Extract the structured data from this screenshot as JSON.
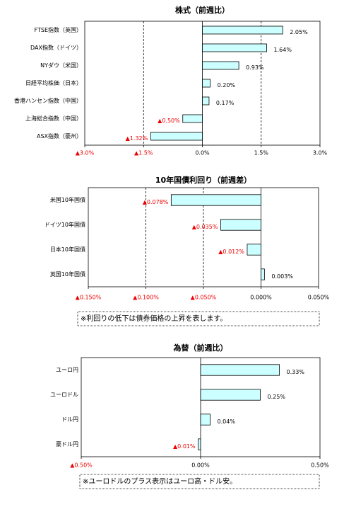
{
  "chart_data": [
    {
      "type": "hbar",
      "title": "株式（前週比）",
      "categories": [
        "FTSE指数（英国）",
        "DAX指数（ドイツ）",
        "NYダウ（米国）",
        "日経平均株価（日本）",
        "香港ハンセン指数（中国）",
        "上海総合指数（中国）",
        "ASX指数（豪州）"
      ],
      "values": [
        2.05,
        1.64,
        0.93,
        0.2,
        0.17,
        -0.5,
        -1.32
      ],
      "value_labels": [
        "2.05%",
        "1.64%",
        "0.93%",
        "0.20%",
        "0.17%",
        "▲0.50%",
        "▲1.32%"
      ],
      "color": "#ccffff",
      "grid": true,
      "xlim": [
        -3.0,
        3.0
      ],
      "xticks": [
        {
          "value": -3.0,
          "label": "▲3.0%"
        },
        {
          "value": -1.5,
          "label": "▲1.5%"
        },
        {
          "value": 0,
          "label": "0.0%"
        },
        {
          "value": 1.5,
          "label": "1.5%"
        },
        {
          "value": 3.0,
          "label": "3.0%"
        }
      ]
    },
    {
      "type": "hbar",
      "title": "10年国債利回り（前週差）",
      "categories": [
        "米国10年国債",
        "ドイツ10年国債",
        "日本10年国債",
        "英国10年国債"
      ],
      "values": [
        -0.078,
        -0.035,
        -0.012,
        0.003
      ],
      "value_labels": [
        "▲0.078%",
        "▲0.035%",
        "▲0.012%",
        "0.003%"
      ],
      "color": "#ccffff",
      "grid": true,
      "xlim": [
        -0.15,
        0.05
      ],
      "xticks": [
        {
          "value": -0.15,
          "label": "▲0.150%"
        },
        {
          "value": -0.1,
          "label": "▲0.100%"
        },
        {
          "value": -0.05,
          "label": "▲0.050%"
        },
        {
          "value": 0,
          "label": "0.000%"
        },
        {
          "value": 0.05,
          "label": "0.050%"
        }
      ],
      "note": "※利回りの低下は債券価格の上昇を表します。"
    },
    {
      "type": "hbar",
      "title": "為替（前週比）",
      "categories": [
        "ユーロ円",
        "ユーロドル",
        "ドル円",
        "豪ドル円"
      ],
      "values": [
        0.33,
        0.25,
        0.04,
        -0.01
      ],
      "value_labels": [
        "0.33%",
        "0.25%",
        "0.04%",
        "▲0.01%"
      ],
      "color": "#ccffff",
      "grid": true,
      "xlim": [
        -0.5,
        0.5
      ],
      "xticks": [
        {
          "value": -0.5,
          "label": "▲0.50%"
        },
        {
          "value": 0,
          "label": "0.00%"
        },
        {
          "value": 0.5,
          "label": "0.50%"
        }
      ],
      "note": "※ユーロドルのプラス表示はユーロ高・ドル安。"
    }
  ]
}
